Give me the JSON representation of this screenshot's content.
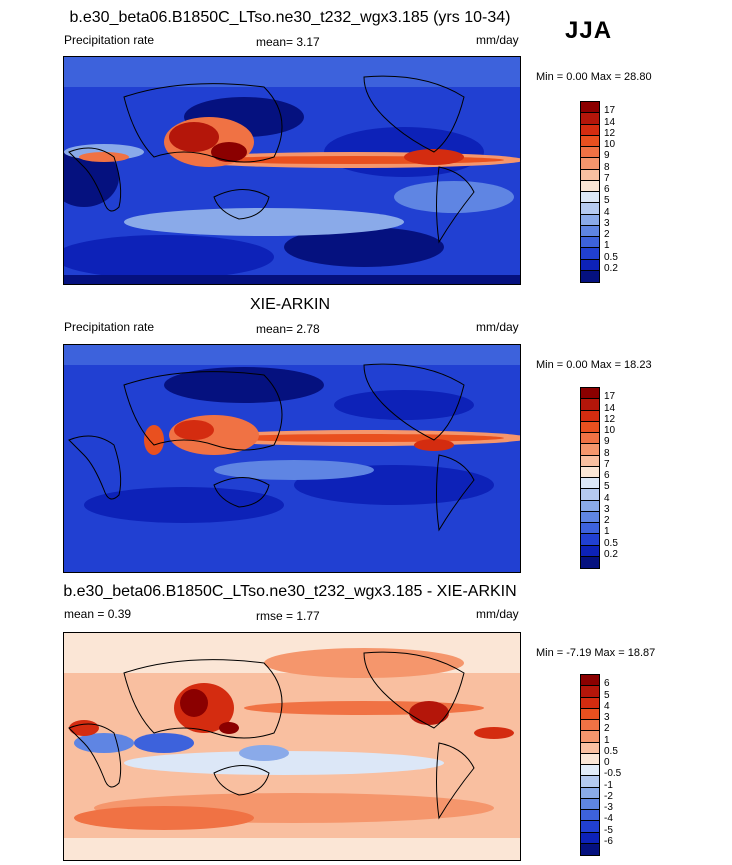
{
  "season": "JJA",
  "panels": [
    {
      "title": "b.e30_beta06.B1850C_LTso.ne30_t232_wgx3.185 (yrs 10-34)",
      "left_label": "Precipitation rate",
      "center_label": "mean=   3.17",
      "right_label": "mm/day",
      "minmax": "Min =   0.00 Max =  28.80",
      "colorbar": {
        "labels": [
          "17",
          "14",
          "12",
          "10",
          "9",
          "8",
          "7",
          "6",
          "5",
          "4",
          "3",
          "2",
          "1",
          "0.5",
          "0.2"
        ],
        "colors": [
          "#8b0000",
          "#b4160a",
          "#d42c10",
          "#e9501f",
          "#f07244",
          "#f5966c",
          "#f9bfa0",
          "#fbe6d6",
          "#dce7f7",
          "#b5caf0",
          "#8aaae9",
          "#5f85e3",
          "#3d62dc",
          "#2140d2",
          "#0d22b8",
          "#05117f"
        ]
      },
      "map_kind": "precip"
    },
    {
      "title": "XIE-ARKIN",
      "left_label": "Precipitation rate",
      "center_label": "mean=   2.78",
      "right_label": "mm/day",
      "minmax": "Min =   0.00 Max =  18.23",
      "colorbar": {
        "labels": [
          "17",
          "14",
          "12",
          "10",
          "9",
          "8",
          "7",
          "6",
          "5",
          "4",
          "3",
          "2",
          "1",
          "0.5",
          "0.2"
        ],
        "colors": [
          "#8b0000",
          "#b4160a",
          "#d42c10",
          "#e9501f",
          "#f07244",
          "#f5966c",
          "#f9bfa0",
          "#fbe6d6",
          "#dce7f7",
          "#b5caf0",
          "#8aaae9",
          "#5f85e3",
          "#3d62dc",
          "#2140d2",
          "#0d22b8",
          "#05117f"
        ]
      },
      "map_kind": "precip_obs"
    },
    {
      "title": "b.e30_beta06.B1850C_LTso.ne30_t232_wgx3.185 - XIE-ARKIN",
      "left_label": "mean =   0.39",
      "center_label": "rmse =   1.77",
      "right_label": "mm/day",
      "minmax": "Min =  -7.19 Max =  18.87",
      "colorbar": {
        "labels": [
          "6",
          "5",
          "4",
          "3",
          "2",
          "1",
          "0.5",
          "0",
          "-0.5",
          "-1",
          "-2",
          "-3",
          "-4",
          "-5",
          "-6"
        ],
        "colors": [
          "#8b0000",
          "#b4160a",
          "#d42c10",
          "#e9501f",
          "#f07244",
          "#f5966c",
          "#f9bfa0",
          "#fbe6d6",
          "#e2ecf9",
          "#b5caf0",
          "#8aaae9",
          "#5f85e3",
          "#3d62dc",
          "#2140d2",
          "#0d22b8",
          "#05117f"
        ]
      },
      "map_kind": "diff"
    }
  ]
}
